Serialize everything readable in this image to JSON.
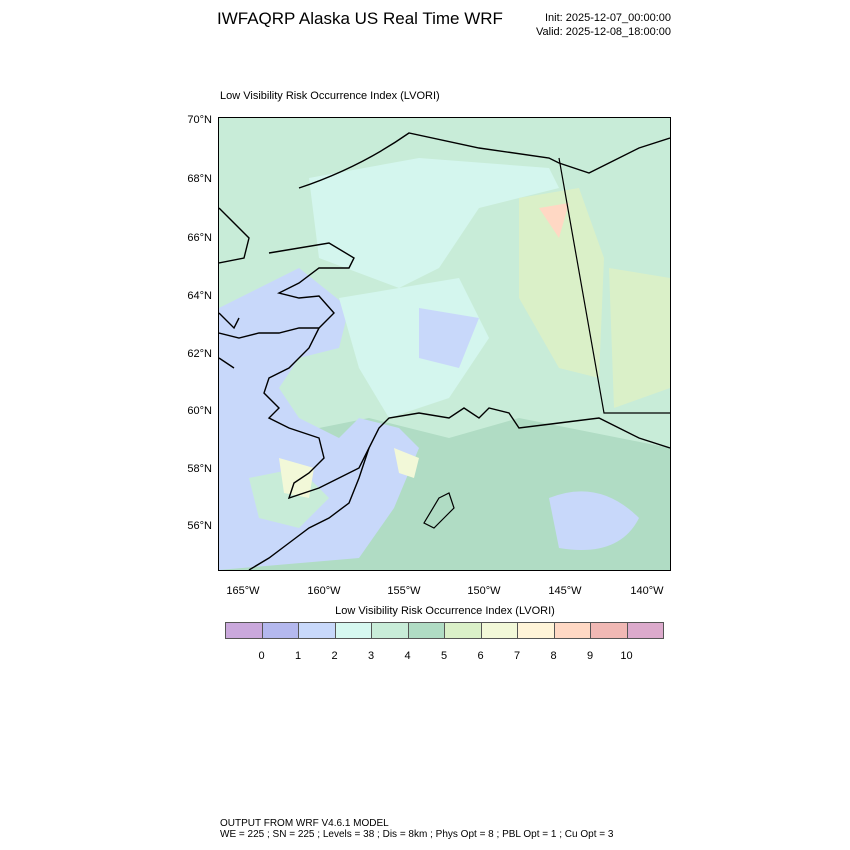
{
  "header": {
    "title": "IWFAQRP Alaska US Real Time WRF",
    "init": "Init: 2025-12-07_00:00:00",
    "valid": "Valid: 2025-12-08_18:00:00"
  },
  "plot": {
    "subtitle": "Low Visibility Risk Occurrence Index   (LVORI)",
    "lat_labels": [
      "70°N",
      "68°N",
      "66°N",
      "64°N",
      "62°N",
      "60°N",
      "58°N",
      "56°N"
    ],
    "lon_labels": [
      "165°W",
      "160°W",
      "155°W",
      "150°W",
      "145°W",
      "140°W"
    ],
    "colors": {
      "ocean": "#c8d8fa",
      "land": "#c8ecd8",
      "land_dark": "#b0dcc4",
      "pale": "#d4f6ee",
      "yellow": "#f0f8d8",
      "orange": "#ffd8c4",
      "coast": "#000000"
    }
  },
  "colorbar": {
    "title": "Low Visibility Risk Occurrence Index  (LVORI)",
    "colors": [
      "#caa8dc",
      "#b4b8ee",
      "#c8d8fa",
      "#d6f8f0",
      "#c8ecd8",
      "#b0dcc4",
      "#daf0c8",
      "#f2f8d8",
      "#fff4d8",
      "#ffd8c4",
      "#f0b8b4",
      "#dcaacc"
    ],
    "labels": [
      "0",
      "1",
      "2",
      "3",
      "4",
      "5",
      "6",
      "7",
      "8",
      "9",
      "10"
    ]
  },
  "footer": {
    "line1": "OUTPUT FROM WRF V4.6.1 MODEL",
    "line2": "WE = 225 ; SN = 225 ; Levels = 38 ; Dis = 8km ; Phys Opt = 8 ; PBL Opt = 1 ; Cu Opt = 3"
  }
}
